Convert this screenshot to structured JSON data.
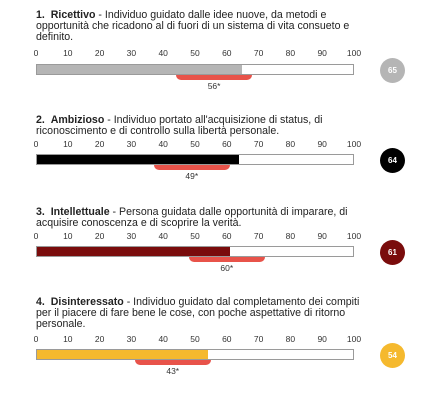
{
  "chart_data": [
    {
      "type": "bar",
      "number": "1.",
      "name": "Ricettivo",
      "description": "Individuo guidato dalle idee nuove, da metodi e opportunità che ricadono al di fuori di un sistema di vita consueto e definito.",
      "value": 65,
      "average": 56,
      "average_label": "56*",
      "badge_label": "65",
      "color": "#b5b5b5",
      "xlim": [
        0,
        100
      ],
      "ticks": [
        "0",
        "10",
        "20",
        "30",
        "40",
        "50",
        "60",
        "70",
        "80",
        "90",
        "100"
      ]
    },
    {
      "type": "bar",
      "number": "2.",
      "name": "Ambizioso",
      "description": "Individuo portato all'acquisizione di status, di riconoscimento e di controllo sulla libertà personale.",
      "value": 64,
      "average": 49,
      "average_label": "49*",
      "badge_label": "64",
      "color": "#000000",
      "xlim": [
        0,
        100
      ],
      "ticks": [
        "0",
        "10",
        "20",
        "30",
        "40",
        "50",
        "60",
        "70",
        "80",
        "90",
        "100"
      ]
    },
    {
      "type": "bar",
      "number": "3.",
      "name": "Intellettuale",
      "description": "Persona guidata dalle opportunità di imparare, di acquisire conoscenza e di scoprire la verità.",
      "value": 61,
      "average": 60,
      "average_label": "60*",
      "badge_label": "61",
      "color": "#7a0c0c",
      "xlim": [
        0,
        100
      ],
      "ticks": [
        "0",
        "10",
        "20",
        "30",
        "40",
        "50",
        "60",
        "70",
        "80",
        "90",
        "100"
      ]
    },
    {
      "type": "bar",
      "number": "4.",
      "name": "Disinteressato",
      "description": "Individuo guidato dal completamento dei compiti per il piacere di fare bene le cose, con poche aspettative di ritorno personale.",
      "value": 54,
      "average": 43,
      "average_label": "43*",
      "badge_label": "54",
      "color": "#f5b92e",
      "xlim": [
        0,
        100
      ],
      "ticks": [
        "0",
        "10",
        "20",
        "30",
        "40",
        "50",
        "60",
        "70",
        "80",
        "90",
        "100"
      ]
    }
  ]
}
